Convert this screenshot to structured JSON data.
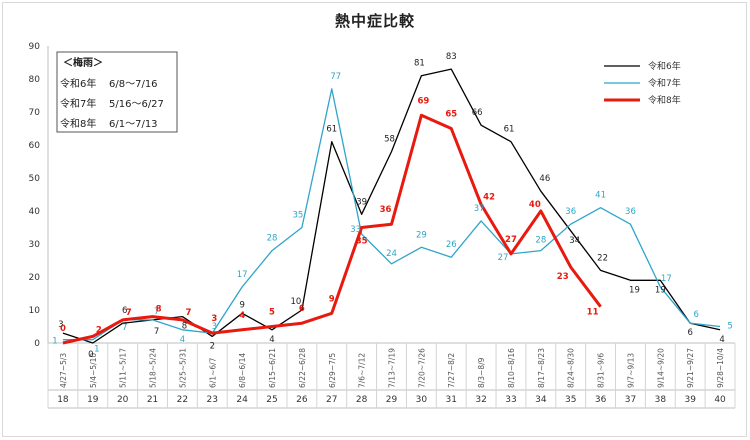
{
  "chart_data": {
    "type": "line",
    "title": "熱中症比較",
    "ylim": [
      0,
      90
    ],
    "y_ticks": [
      "0",
      "10",
      "20",
      "30",
      "40",
      "50",
      "60",
      "70",
      "80",
      "90"
    ],
    "weeks": [
      "18",
      "19",
      "20",
      "21",
      "22",
      "23",
      "24",
      "25",
      "26",
      "27",
      "28",
      "29",
      "30",
      "31",
      "32",
      "33",
      "34",
      "35",
      "36",
      "37",
      "38",
      "39",
      "40"
    ],
    "categories": [
      "4/27~5/3",
      "5/4~5/10",
      "5/11~5/17",
      "5/18~5/24",
      "5/25~5/31",
      "6/1~6/7",
      "6/8~6/14",
      "6/15~6/21",
      "6/22~6/28",
      "6/29~7/5",
      "7/6~7/12",
      "7/13~7/19",
      "7/20~7/26",
      "7/27~8/2",
      "8/3~8/9",
      "8/10~8/16",
      "8/17~8/23",
      "8/24~8/30",
      "8/31~9/6",
      "9/7~9/13",
      "9/14~9/20",
      "9/21~9/27",
      "9/28~10/4"
    ],
    "series": [
      {
        "name": "令和6年",
        "color": "#000000",
        "bold": false,
        "values": [
          3,
          0,
          6,
          7,
          8,
          2,
          9,
          4,
          10,
          61,
          39,
          58,
          81,
          83,
          66,
          61,
          46,
          34,
          22,
          19,
          19,
          6,
          4
        ]
      },
      {
        "name": "令和7年",
        "color": "#2ea5c9",
        "bold": false,
        "values": [
          1,
          1,
          7,
          7,
          4,
          3,
          17,
          28,
          35,
          77,
          33,
          24,
          29,
          26,
          37,
          27,
          28,
          36,
          41,
          36,
          17,
          6,
          5
        ]
      },
      {
        "name": "令和8年",
        "color": "#e8190e",
        "bold": true,
        "values": [
          0,
          2,
          7,
          8,
          7,
          3,
          4,
          5,
          6,
          9,
          35,
          36,
          69,
          65,
          42,
          27,
          40,
          23,
          11,
          null,
          null,
          null,
          null
        ]
      }
    ],
    "legend_position": "top-right",
    "rainy_season_box": {
      "heading": "＜梅雨＞",
      "rows": [
        {
          "year": "令和6年",
          "period": "6/8～7/16"
        },
        {
          "year": "令和7年",
          "period": "5/16～6/27"
        },
        {
          "year": "令和8年",
          "period": "6/1～7/13"
        }
      ]
    }
  }
}
